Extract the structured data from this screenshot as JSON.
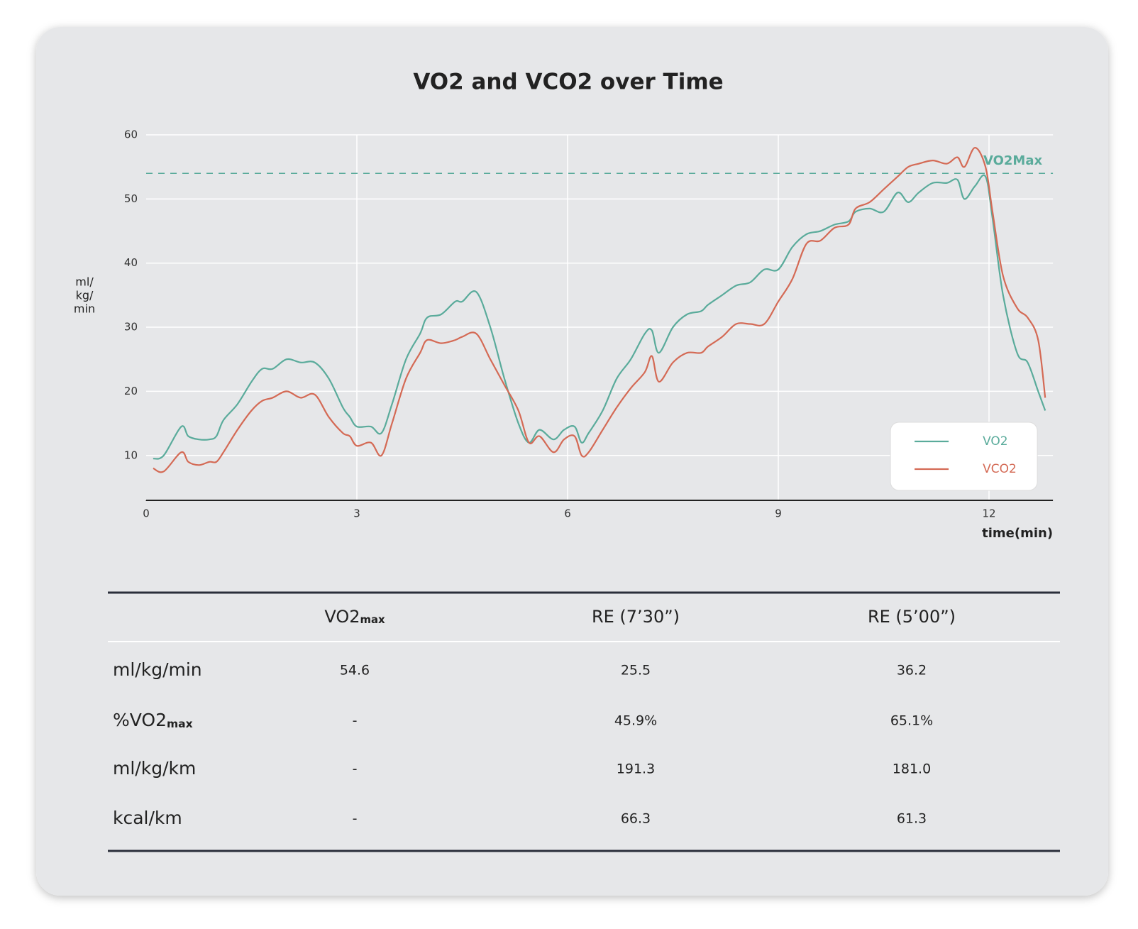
{
  "chart_data": {
    "type": "line",
    "title": "VO2 and VCO2 over Time",
    "ylabel": [
      "ml/",
      "kg/",
      "min"
    ],
    "xlabel": "time(min)",
    "x": [
      0.1,
      0.25,
      0.5,
      0.6,
      0.75,
      0.9,
      1.0,
      1.1,
      1.3,
      1.5,
      1.65,
      1.8,
      2.0,
      2.2,
      2.4,
      2.6,
      2.8,
      2.9,
      3.0,
      3.2,
      3.35,
      3.5,
      3.7,
      3.9,
      4.0,
      4.2,
      4.4,
      4.5,
      4.7,
      4.9,
      5.1,
      5.3,
      5.45,
      5.6,
      5.8,
      5.95,
      6.1,
      6.2,
      6.3,
      6.5,
      6.7,
      6.9,
      7.1,
      7.2,
      7.3,
      7.5,
      7.7,
      7.9,
      8.0,
      8.2,
      8.4,
      8.6,
      8.8,
      9.0,
      9.2,
      9.4,
      9.6,
      9.8,
      10.0,
      10.1,
      10.3,
      10.5,
      10.7,
      10.85,
      11.0,
      11.2,
      11.4,
      11.55,
      11.65,
      11.8,
      11.95,
      12.05,
      12.2,
      12.4,
      12.55,
      12.7,
      12.8
    ],
    "series": [
      {
        "name": "VO2",
        "color": "#5aab9b",
        "values": [
          9.5,
          10,
          14.5,
          13,
          12.5,
          12.5,
          13,
          15.5,
          18,
          21.5,
          23.5,
          23.5,
          25,
          24.5,
          24.5,
          22,
          17.5,
          16,
          14.5,
          14.5,
          13.5,
          18,
          25,
          29,
          31.5,
          32,
          34,
          34,
          35.5,
          30,
          22,
          15,
          12,
          14,
          12.5,
          14,
          14.5,
          12,
          13.5,
          17,
          22,
          25,
          29,
          29.5,
          26,
          30,
          32,
          32.5,
          33.5,
          35,
          36.5,
          37,
          39,
          39,
          42.5,
          44.5,
          45,
          46,
          46.5,
          48,
          48.5,
          48,
          51,
          49.5,
          51,
          52.5,
          52.5,
          53,
          50,
          52,
          53.5,
          47,
          35,
          26,
          24.5,
          20,
          17
        ]
      },
      {
        "name": "VCO2",
        "color": "#d46a55",
        "values": [
          8,
          7.5,
          10.5,
          9,
          8.5,
          9,
          9,
          10.5,
          14,
          17,
          18.5,
          19,
          20,
          19,
          19.5,
          16,
          13.5,
          13,
          11.5,
          12,
          10,
          15,
          22,
          26,
          28,
          27.5,
          28,
          28.5,
          29,
          25,
          21,
          17,
          12,
          13,
          10.5,
          12.5,
          13,
          10,
          10.5,
          14,
          17.5,
          20.5,
          23,
          25.5,
          21.5,
          24.5,
          26,
          26,
          27,
          28.5,
          30.5,
          30.5,
          30.5,
          34,
          37.5,
          43,
          43.5,
          45.5,
          46,
          48.5,
          49.5,
          51.5,
          53.5,
          55,
          55.5,
          56,
          55.5,
          56.5,
          55,
          58,
          55,
          48,
          38,
          33,
          31.5,
          28,
          19
        ]
      }
    ],
    "reference_line": {
      "value": 54,
      "label": "VO2Max",
      "color": "#5aab9b"
    },
    "xlim": [
      0,
      12.91
    ],
    "ylim": [
      3,
      60
    ],
    "xticks": [
      0,
      3,
      6,
      9,
      12
    ],
    "yticks": [
      10,
      20,
      30,
      40,
      50,
      60
    ],
    "grid": true,
    "legend": "lower right"
  },
  "table": {
    "headers": [
      {
        "text": "VO2",
        "sub": "max"
      },
      {
        "text": "RE (7’30”)"
      },
      {
        "text": "RE (5’00”)"
      }
    ],
    "rows": [
      {
        "label": {
          "text": "ml/kg/min"
        },
        "cells": [
          "54.6",
          "25.5",
          "36.2"
        ]
      },
      {
        "label": {
          "text": "%VO2",
          "sub": "max"
        },
        "cells": [
          "-",
          "45.9%",
          "65.1%"
        ]
      },
      {
        "label": {
          "text": "ml/kg/km"
        },
        "cells": [
          "-",
          "191.3",
          "181.0"
        ]
      },
      {
        "label": {
          "text": "kcal/km"
        },
        "cells": [
          "-",
          "66.3",
          "61.3"
        ]
      }
    ]
  }
}
